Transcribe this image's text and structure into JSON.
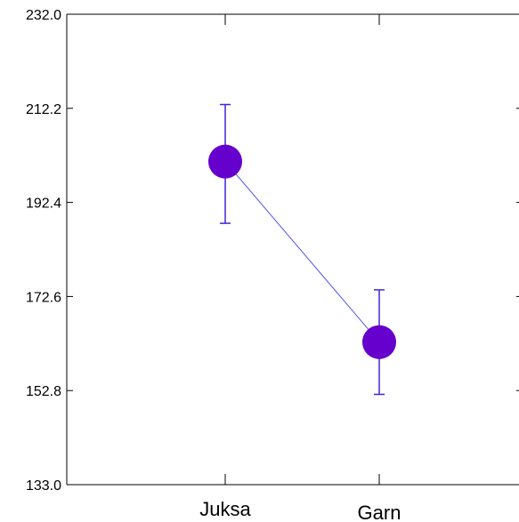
{
  "chart_data": {
    "type": "line",
    "title": "",
    "xlabel": "",
    "ylabel": "",
    "categories": [
      "Juksa",
      "Garn"
    ],
    "series": [
      {
        "values": [
          201.0,
          163.0
        ],
        "error_low": [
          188.0,
          152.0
        ],
        "error_high": [
          213.0,
          174.0
        ]
      }
    ],
    "ylim": [
      133.0,
      232.0
    ],
    "y_ticks": [
      "133.0",
      "152.8",
      "172.6",
      "192.4",
      "212.2",
      "232.0"
    ],
    "y_tick_values": [
      133.0,
      152.8,
      172.6,
      192.4,
      212.2,
      232.0
    ],
    "grid": false,
    "legend": "none",
    "colors": {
      "marker": "#6600cc",
      "line": "#5555ee",
      "error_bar": "#4422dd",
      "axis": "#000000"
    }
  }
}
